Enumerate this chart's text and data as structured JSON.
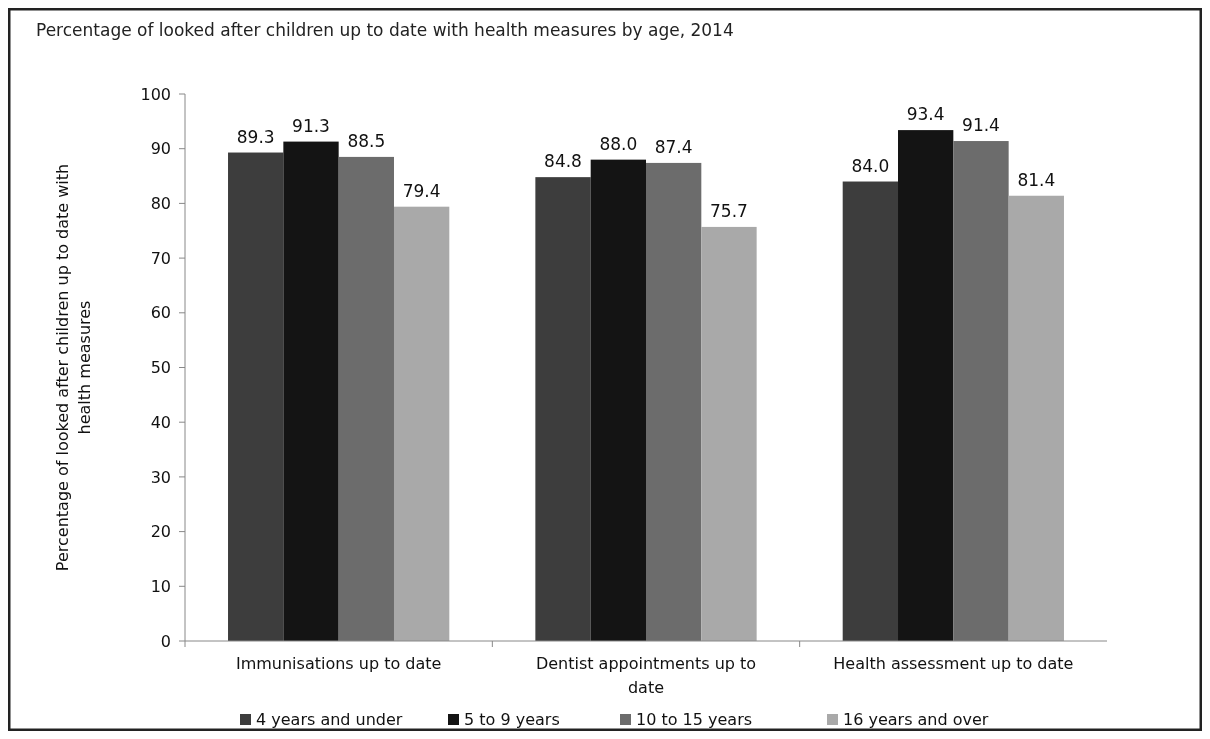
{
  "chart_data": {
    "type": "bar",
    "title": "Percentage of looked after children up to date with health measures by age, 2014",
    "ylabel": "Percentage of looked after children up to date with health measures",
    "categories": [
      "Immunisations up to date",
      "Dentist appointments up to date",
      "Health assessment up to date"
    ],
    "series": [
      {
        "name": "4 years and under",
        "color": "#3d3d3d",
        "values": [
          89.3,
          84.8,
          84.0
        ],
        "value_labels": [
          "89.3",
          "84.8",
          "84.0"
        ]
      },
      {
        "name": "5 to 9 years",
        "color": "#141414",
        "values": [
          91.3,
          88.0,
          93.4
        ],
        "value_labels": [
          "91.3",
          "88.0",
          "93.4"
        ]
      },
      {
        "name": "10 to 15 years",
        "color": "#6c6c6c",
        "values": [
          88.5,
          87.4,
          91.4
        ],
        "value_labels": [
          "88.5",
          "87.4",
          "91.4"
        ]
      },
      {
        "name": "16 years and over",
        "color": "#a9a9a9",
        "values": [
          79.4,
          75.7,
          81.4
        ],
        "value_labels": [
          "79.4",
          "75.7",
          "81.4"
        ]
      }
    ],
    "ylim": [
      0,
      100
    ],
    "yticks": [
      0,
      10,
      20,
      30,
      40,
      50,
      60,
      70,
      80,
      90,
      100
    ],
    "grid": false,
    "legend": "bottom"
  }
}
